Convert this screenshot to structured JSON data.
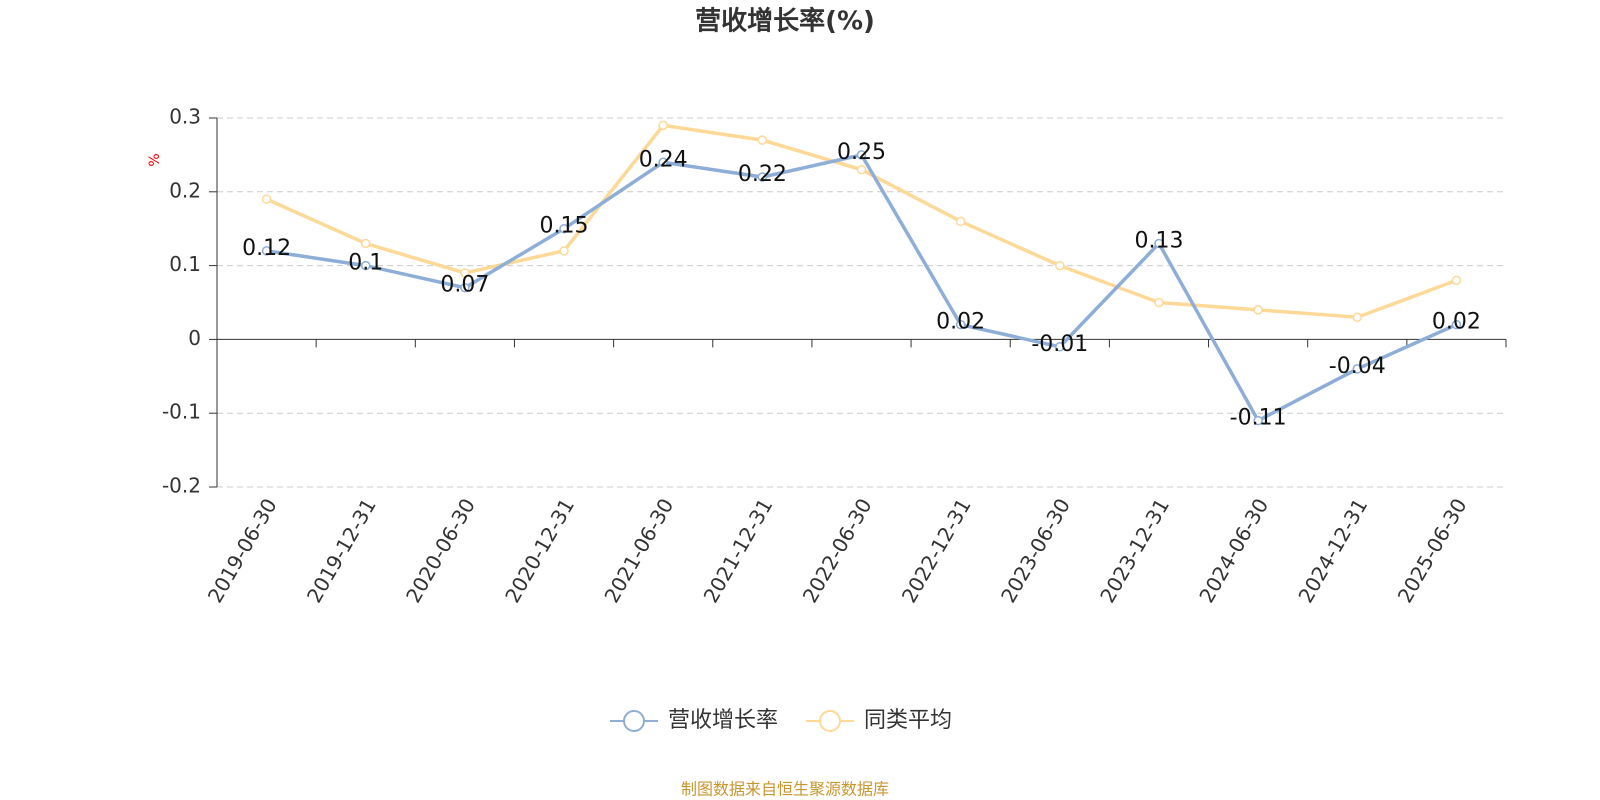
{
  "chart_data": {
    "type": "line",
    "title": "营收增长率(%)",
    "y_label": "%",
    "source": "制图数据来自恒生聚源数据库",
    "categories": [
      "2019-06-30",
      "2019-12-31",
      "2020-06-30",
      "2020-12-31",
      "2021-06-30",
      "2021-12-31",
      "2022-06-30",
      "2022-12-31",
      "2023-06-30",
      "2023-12-31",
      "2024-06-30",
      "2024-12-31",
      "2025-06-30"
    ],
    "series": [
      {
        "name": "营收增长率",
        "color": "#8eaed8",
        "values": [
          0.12,
          0.1,
          0.07,
          0.15,
          0.24,
          0.22,
          0.25,
          0.02,
          -0.01,
          0.13,
          -0.11,
          -0.04,
          0.02
        ],
        "data_labels": true
      },
      {
        "name": "同类平均",
        "color": "#fcd997",
        "values": [
          0.19,
          0.13,
          0.09,
          0.12,
          0.29,
          0.27,
          0.23,
          0.16,
          0.1,
          0.05,
          0.04,
          0.03,
          0.08
        ],
        "data_labels": false
      }
    ],
    "ylim": [
      -0.2,
      0.3
    ],
    "yticks": [
      -0.2,
      -0.1,
      0,
      0.1,
      0.2,
      0.3
    ],
    "grid": true,
    "legend": "bottom"
  }
}
